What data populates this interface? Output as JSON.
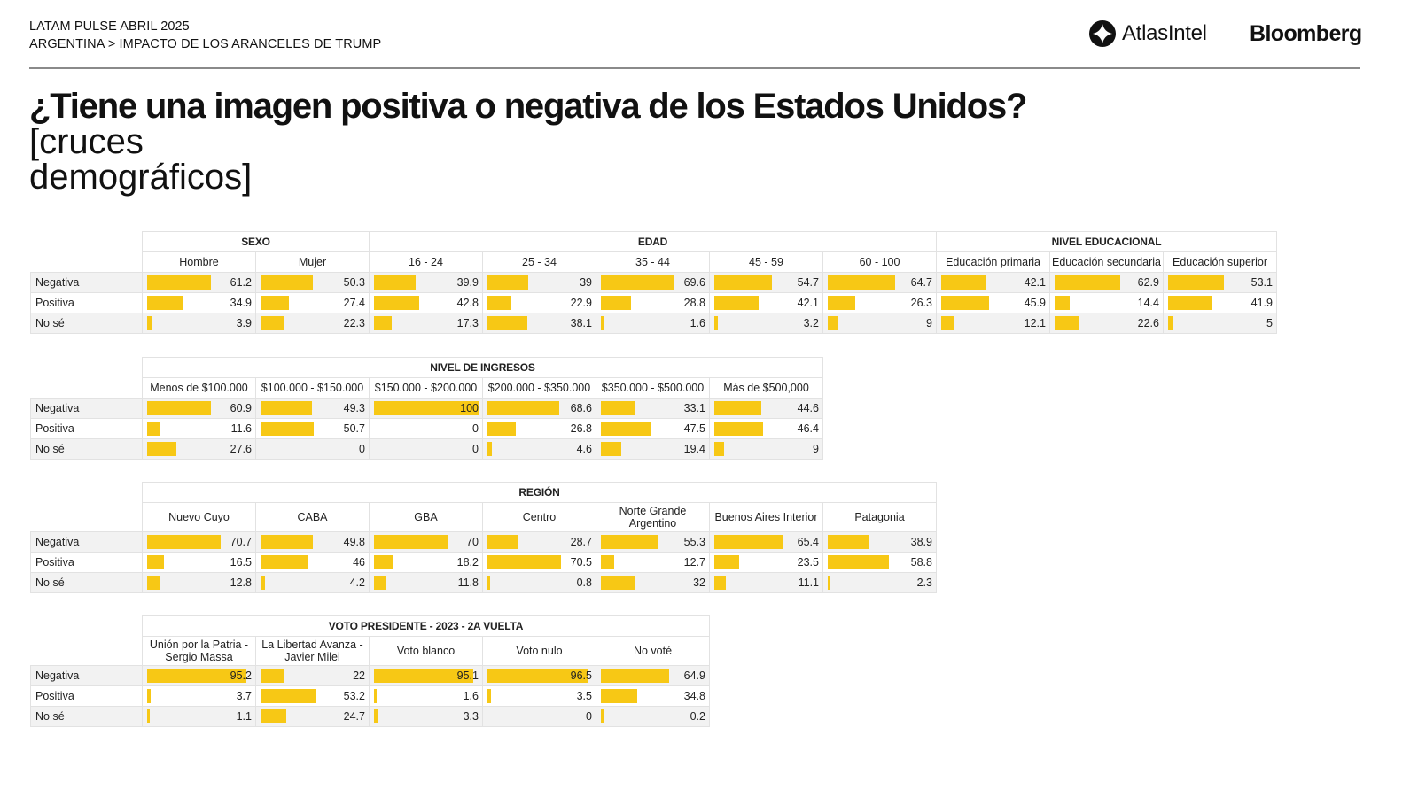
{
  "header": {
    "line1": "LATAM PULSE ABRIL 2025",
    "line2": "ARGENTINA > IMPACTO DE LOS ARANCELES DE TRUMP",
    "logo_atlas": "AtlasIntel",
    "logo_bloomberg": "Bloomberg"
  },
  "title": {
    "question": "¿Tiene una imagen positiva o negativa de los Estados Unidos?",
    "subtitle_a": "[cruces",
    "subtitle_b": "demográficos]"
  },
  "colors": {
    "bar": "#f7c815",
    "row_alt": "#f2f2f2",
    "border": "#e2e2e2"
  },
  "chart_data": {
    "type": "table",
    "row_labels": [
      "Negativa",
      "Positiva",
      "No sé"
    ],
    "value_range": [
      0,
      100
    ],
    "tables": [
      {
        "groups": [
          {
            "name": "SEXO",
            "columns": [
              "Hombre",
              "Mujer"
            ]
          },
          {
            "name": "EDAD",
            "columns": [
              "16 - 24",
              "25 - 34",
              "35 - 44",
              "45 - 59",
              "60 - 100"
            ]
          },
          {
            "name": "NIVEL EDUCACIONAL",
            "columns": [
              "Educación primaria",
              "Educación secundaria",
              "Educación superior"
            ]
          }
        ],
        "rows": [
          [
            "61.2",
            "50.3",
            "39.9",
            "39",
            "69.6",
            "54.7",
            "64.7",
            "42.1",
            "62.9",
            "53.1"
          ],
          [
            "34.9",
            "27.4",
            "42.8",
            "22.9",
            "28.8",
            "42.1",
            "26.3",
            "45.9",
            "14.4",
            "41.9"
          ],
          [
            "3.9",
            "22.3",
            "17.3",
            "38.1",
            "1.6",
            "3.2",
            "9",
            "12.1",
            "22.6",
            "5"
          ]
        ]
      },
      {
        "groups": [
          {
            "name": "NIVEL DE INGRESOS",
            "columns": [
              "Menos de $100.000",
              "$100.000 - $150.000",
              "$150.000 - $200.000",
              "$200.000 - $350.000",
              "$350.000 - $500.000",
              "Más de $500,000"
            ]
          }
        ],
        "rows": [
          [
            "60.9",
            "49.3",
            "100",
            "68.6",
            "33.1",
            "44.6"
          ],
          [
            "11.6",
            "50.7",
            "0",
            "26.8",
            "47.5",
            "46.4"
          ],
          [
            "27.6",
            "0",
            "0",
            "4.6",
            "19.4",
            "9"
          ]
        ]
      },
      {
        "groups": [
          {
            "name": "REGIÓN",
            "columns": [
              "Nuevo Cuyo",
              "CABA",
              "GBA",
              "Centro",
              "Norte Grande Argentino",
              "Buenos Aires Interior",
              "Patagonia"
            ]
          }
        ],
        "rows": [
          [
            "70.7",
            "49.8",
            "70",
            "28.7",
            "55.3",
            "65.4",
            "38.9"
          ],
          [
            "16.5",
            "46",
            "18.2",
            "70.5",
            "12.7",
            "23.5",
            "58.8"
          ],
          [
            "12.8",
            "4.2",
            "11.8",
            "0.8",
            "32",
            "11.1",
            "2.3"
          ]
        ]
      },
      {
        "groups": [
          {
            "name": "VOTO PRESIDENTE - 2023 - 2A VUELTA",
            "columns": [
              "Unión por la Patria - Sergio Massa",
              "La Libertad Avanza - Javier Milei",
              "Voto blanco",
              "Voto nulo",
              "No voté"
            ]
          }
        ],
        "rows": [
          [
            "95.2",
            "22",
            "95.1",
            "96.5",
            "64.9"
          ],
          [
            "3.7",
            "53.2",
            "1.6",
            "3.5",
            "34.8"
          ],
          [
            "1.1",
            "24.7",
            "3.3",
            "0",
            "0.2"
          ]
        ]
      }
    ]
  }
}
